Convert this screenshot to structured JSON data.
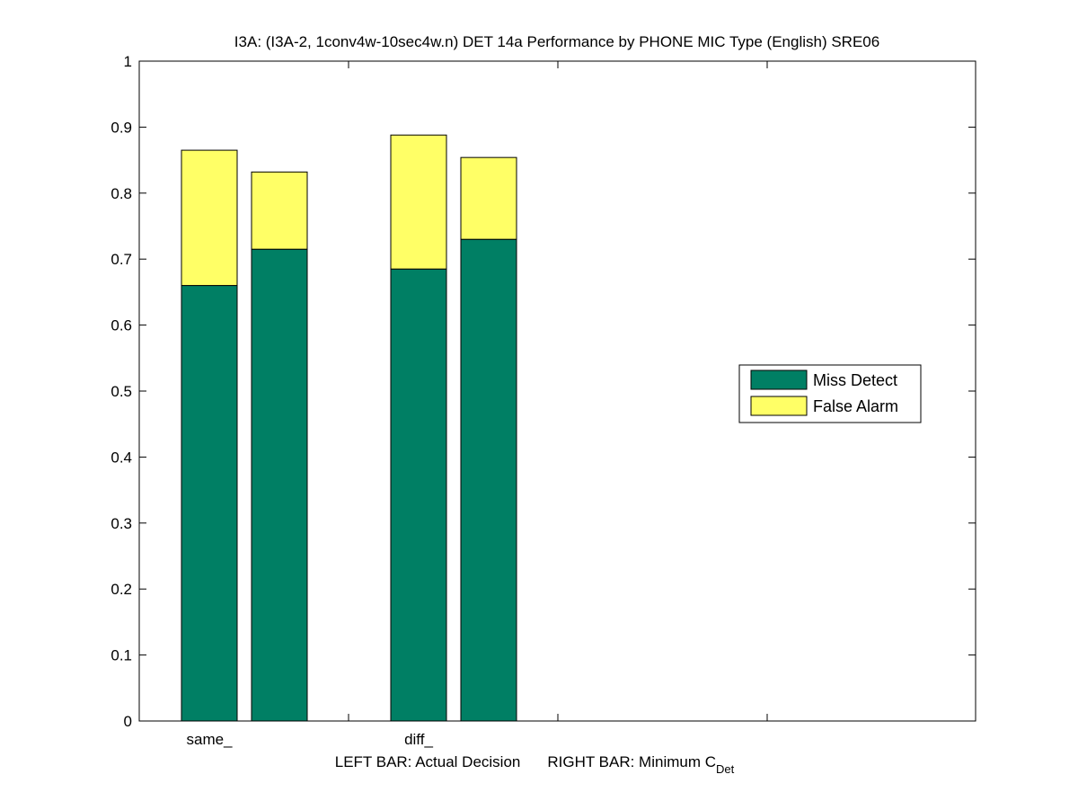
{
  "chart_data": {
    "type": "bar",
    "stacked": true,
    "title": "I3A: (I3A-2, 1conv4w-10sec4w.n) DET 14a Performance by PHONE MIC Type (English) SRE06",
    "xlabel": {
      "left": "LEFT BAR: Actual Decision",
      "right_prefix": "RIGHT BAR: Minimum C",
      "right_subscript": "Det"
    },
    "categories": [
      "same_",
      "diff_"
    ],
    "bars_per_category": [
      "Actual Decision",
      "Minimum C_Det"
    ],
    "series": [
      {
        "name": "Miss Detect",
        "color": "#007f64",
        "values": [
          [
            0.66,
            0.715
          ],
          [
            0.685,
            0.73
          ]
        ]
      },
      {
        "name": "False Alarm",
        "color": "#ffff66",
        "values": [
          [
            0.205,
            0.117
          ],
          [
            0.203,
            0.124
          ]
        ]
      }
    ],
    "ylim": [
      0,
      1
    ],
    "yticks": [
      "0",
      "0.1",
      "0.2",
      "0.3",
      "0.4",
      "0.5",
      "0.6",
      "0.7",
      "0.8",
      "0.9",
      "1"
    ],
    "grid": false,
    "legend_position": "right"
  }
}
